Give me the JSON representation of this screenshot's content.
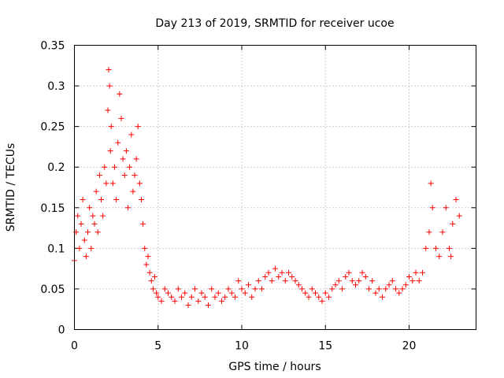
{
  "chart_data": {
    "type": "scatter",
    "title": "Day 213 of 2019, SRMTID for receiver ucoe",
    "xlabel": "GPS time / hours",
    "ylabel": "SRMTID / TECUs",
    "xlim": [
      0,
      24
    ],
    "ylim": [
      0,
      0.35
    ],
    "xticks": [
      0,
      5,
      10,
      15,
      20
    ],
    "xtick_labels": [
      "0",
      "5",
      "10",
      "15",
      "20"
    ],
    "yticks": [
      0,
      0.05,
      0.1,
      0.15,
      0.2,
      0.25,
      0.3,
      0.35
    ],
    "ytick_labels": [
      "0",
      "0.05",
      "0.1",
      "0.15",
      "0.2",
      "0.25",
      "0.3",
      "0.35"
    ],
    "grid": true,
    "marker": "+",
    "color": "#ff0000",
    "series": [
      {
        "name": "ucoe",
        "x": [
          0.0,
          0.1,
          0.2,
          0.3,
          0.4,
          0.5,
          0.6,
          0.7,
          0.8,
          0.9,
          1.0,
          1.1,
          1.2,
          1.3,
          1.4,
          1.5,
          1.6,
          1.7,
          1.8,
          1.9,
          2.0,
          2.05,
          2.1,
          2.15,
          2.2,
          2.3,
          2.4,
          2.5,
          2.6,
          2.7,
          2.8,
          2.9,
          3.0,
          3.1,
          3.2,
          3.3,
          3.4,
          3.5,
          3.6,
          3.7,
          3.8,
          3.9,
          4.0,
          4.1,
          4.2,
          4.3,
          4.4,
          4.5,
          4.6,
          4.7,
          4.8,
          4.9,
          5.0,
          5.2,
          5.4,
          5.6,
          5.8,
          6.0,
          6.2,
          6.4,
          6.6,
          6.8,
          7.0,
          7.2,
          7.4,
          7.6,
          7.8,
          8.0,
          8.2,
          8.4,
          8.6,
          8.8,
          9.0,
          9.2,
          9.4,
          9.6,
          9.8,
          10.0,
          10.2,
          10.4,
          10.6,
          10.8,
          11.0,
          11.2,
          11.4,
          11.6,
          11.8,
          12.0,
          12.2,
          12.4,
          12.6,
          12.8,
          13.0,
          13.2,
          13.4,
          13.6,
          13.8,
          14.0,
          14.2,
          14.4,
          14.6,
          14.8,
          15.0,
          15.2,
          15.4,
          15.6,
          15.8,
          16.0,
          16.2,
          16.4,
          16.6,
          16.8,
          17.0,
          17.2,
          17.4,
          17.6,
          17.8,
          18.0,
          18.2,
          18.4,
          18.6,
          18.8,
          19.0,
          19.2,
          19.4,
          19.6,
          19.8,
          20.0,
          20.2,
          20.4,
          20.6,
          20.8,
          21.0,
          21.2,
          21.3,
          21.4,
          21.6,
          21.8,
          22.0,
          22.2,
          22.4,
          22.5,
          22.6,
          22.8,
          23.0
        ],
        "y": [
          0.085,
          0.12,
          0.14,
          0.1,
          0.13,
          0.16,
          0.11,
          0.09,
          0.12,
          0.15,
          0.1,
          0.14,
          0.13,
          0.17,
          0.12,
          0.19,
          0.16,
          0.14,
          0.2,
          0.18,
          0.27,
          0.32,
          0.3,
          0.22,
          0.25,
          0.18,
          0.2,
          0.16,
          0.23,
          0.29,
          0.26,
          0.21,
          0.19,
          0.22,
          0.15,
          0.2,
          0.24,
          0.17,
          0.19,
          0.21,
          0.25,
          0.18,
          0.16,
          0.13,
          0.1,
          0.08,
          0.09,
          0.07,
          0.06,
          0.05,
          0.065,
          0.045,
          0.04,
          0.035,
          0.05,
          0.045,
          0.04,
          0.035,
          0.05,
          0.04,
          0.045,
          0.03,
          0.04,
          0.05,
          0.035,
          0.045,
          0.04,
          0.03,
          0.05,
          0.04,
          0.045,
          0.035,
          0.04,
          0.05,
          0.045,
          0.04,
          0.06,
          0.05,
          0.045,
          0.055,
          0.04,
          0.05,
          0.06,
          0.05,
          0.065,
          0.07,
          0.06,
          0.075,
          0.065,
          0.07,
          0.06,
          0.07,
          0.065,
          0.06,
          0.055,
          0.05,
          0.045,
          0.04,
          0.05,
          0.045,
          0.04,
          0.035,
          0.045,
          0.04,
          0.05,
          0.055,
          0.06,
          0.05,
          0.065,
          0.07,
          0.06,
          0.055,
          0.06,
          0.07,
          0.065,
          0.05,
          0.06,
          0.045,
          0.05,
          0.04,
          0.05,
          0.055,
          0.06,
          0.05,
          0.045,
          0.05,
          0.055,
          0.065,
          0.06,
          0.07,
          0.06,
          0.07,
          0.1,
          0.12,
          0.18,
          0.15,
          0.1,
          0.09,
          0.12,
          0.15,
          0.1,
          0.09,
          0.13,
          0.16,
          0.14
        ]
      }
    ]
  }
}
